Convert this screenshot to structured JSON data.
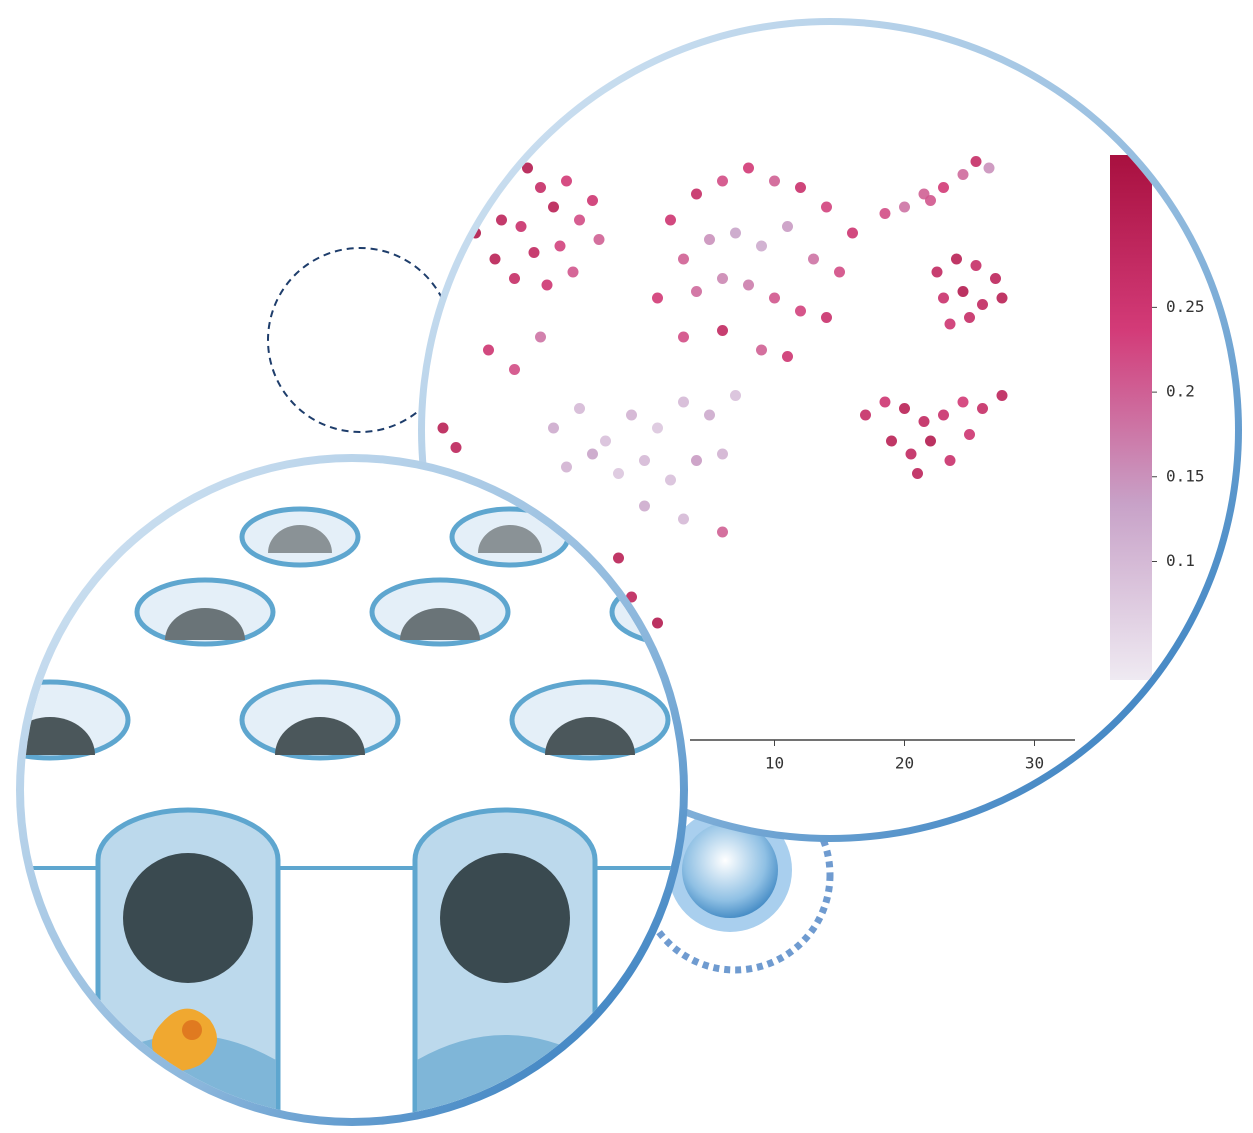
{
  "chart_data": {
    "type": "scatter",
    "x": [
      -12,
      -10.5,
      -9,
      -8,
      -11,
      -9.5,
      -7,
      -6,
      -5,
      -4,
      -8.5,
      -11.5,
      -6.5,
      -3.5,
      -10,
      -7.5,
      -13,
      -5.5,
      2,
      4,
      6,
      8,
      10,
      12,
      14,
      16,
      3,
      5,
      7,
      9,
      11,
      13,
      15,
      1,
      4,
      6,
      8,
      10,
      12,
      14,
      3,
      6,
      9,
      11,
      18.5,
      20,
      21.5,
      23,
      24.5,
      25.5,
      26.5,
      22,
      22.5,
      24,
      25.5,
      27,
      23,
      24.5,
      26,
      23.5,
      25,
      27.5,
      17,
      18.5,
      20,
      21.5,
      23,
      24.5,
      26,
      27.5,
      19,
      20.5,
      22,
      23.5,
      25,
      21,
      -7,
      -5,
      -3,
      -1,
      1,
      3,
      5,
      7,
      -6,
      -4,
      -2,
      0,
      2,
      4,
      6,
      0,
      3,
      6,
      -12,
      -10,
      -8,
      -15.5,
      -14.5,
      -2,
      -1,
      1
    ],
    "y": [
      22,
      23.5,
      24,
      22.5,
      20,
      19.5,
      21,
      23,
      20,
      21.5,
      17.5,
      17,
      18,
      18.5,
      15.5,
      15,
      19,
      16,
      20,
      22,
      23,
      24,
      23,
      22.5,
      21,
      19,
      17,
      18.5,
      19,
      18,
      19.5,
      17,
      16,
      14,
      14.5,
      15.5,
      15,
      14,
      13,
      12.5,
      11,
      11.5,
      10,
      9.5,
      20.5,
      21,
      22,
      22.5,
      23.5,
      24.5,
      24,
      21.5,
      16,
      17,
      16.5,
      15.5,
      14,
      14.5,
      13.5,
      12,
      12.5,
      14,
      5,
      6,
      5.5,
      4.5,
      5,
      6,
      5.5,
      6.5,
      3,
      2,
      3,
      1.5,
      3.5,
      0.5,
      4,
      5.5,
      3,
      5,
      4,
      6,
      5,
      6.5,
      1,
      2,
      0.5,
      1.5,
      0,
      1.5,
      2,
      -2,
      -3,
      -4,
      10,
      8.5,
      11,
      4,
      2.5,
      -6,
      -9,
      -11
    ],
    "values": [
      0.3,
      0.28,
      0.31,
      0.27,
      0.29,
      0.26,
      0.3,
      0.24,
      0.22,
      0.25,
      0.28,
      0.3,
      0.23,
      0.2,
      0.27,
      0.25,
      0.32,
      0.21,
      0.25,
      0.27,
      0.22,
      0.24,
      0.2,
      0.26,
      0.23,
      0.25,
      0.2,
      0.15,
      0.13,
      0.12,
      0.14,
      0.18,
      0.22,
      0.24,
      0.19,
      0.16,
      0.17,
      0.21,
      0.23,
      0.26,
      0.22,
      0.28,
      0.2,
      0.25,
      0.22,
      0.18,
      0.2,
      0.24,
      0.19,
      0.27,
      0.15,
      0.21,
      0.28,
      0.3,
      0.27,
      0.29,
      0.26,
      0.31,
      0.28,
      0.25,
      0.27,
      0.3,
      0.27,
      0.25,
      0.3,
      0.28,
      0.26,
      0.24,
      0.27,
      0.29,
      0.3,
      0.28,
      0.31,
      0.26,
      0.25,
      0.29,
      0.12,
      0.1,
      0.09,
      0.11,
      0.08,
      0.1,
      0.12,
      0.09,
      0.11,
      0.13,
      0.08,
      0.1,
      0.09,
      0.14,
      0.11,
      0.12,
      0.1,
      0.2,
      0.25,
      0.22,
      0.18,
      0.3,
      0.29,
      0.3,
      0.29,
      0.31
    ],
    "xlim": [
      -16.5,
      35
    ],
    "ylim": [
      -20,
      28
    ],
    "xticks": [
      10,
      20,
      30
    ],
    "clim": [
      0.03,
      0.34
    ],
    "cticks": [
      0.1,
      0.15,
      0.2,
      0.25
    ],
    "colorscale": [
      "#efeaf2",
      "#c8a2c8",
      "#d33b78",
      "#a8103f"
    ]
  }
}
